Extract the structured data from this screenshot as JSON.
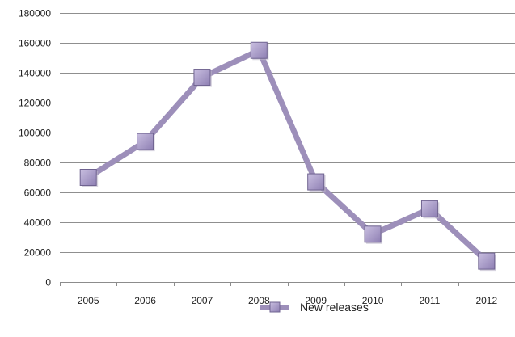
{
  "chart_data": {
    "type": "line",
    "categories": [
      "2005",
      "2006",
      "2007",
      "2008",
      "2009",
      "2010",
      "2011",
      "2012"
    ],
    "series": [
      {
        "name": "New releases",
        "values": [
          70000,
          94000,
          137000,
          155000,
          67000,
          32000,
          49000,
          14000
        ],
        "color": "#9d8fba",
        "marker": "square",
        "marker_color": "#a99ac7"
      }
    ],
    "ylim": [
      0,
      180000
    ],
    "yticks": [
      "0",
      "20000",
      "40000",
      "60000",
      "80000",
      "100000",
      "120000",
      "140000",
      "160000",
      "180000"
    ],
    "grid": true,
    "legend_position": "bottom"
  }
}
